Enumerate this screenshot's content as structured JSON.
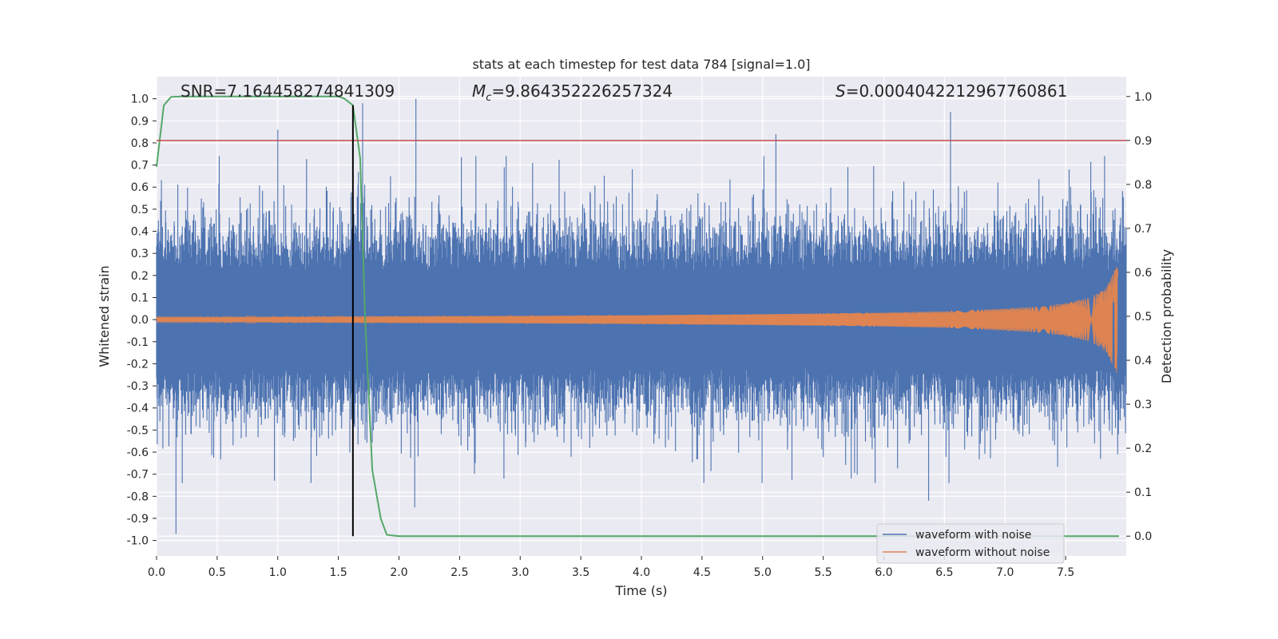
{
  "chart_data": {
    "type": "line",
    "title": "stats at each timestep for test data 784 [signal=1.0]",
    "xlabel": "Time (s)",
    "ylabel_left": "Whitened strain",
    "ylabel_right": "Detection probability",
    "xlim": [
      0.0,
      8.0
    ],
    "ylim_left": [
      -1.07,
      1.1
    ],
    "ylim_right": [
      -0.045,
      1.045
    ],
    "x_ticks": [
      "0.0",
      "0.5",
      "1.0",
      "1.5",
      "2.0",
      "2.5",
      "3.0",
      "3.5",
      "4.0",
      "4.5",
      "5.0",
      "5.5",
      "6.0",
      "6.5",
      "7.0",
      "7.5"
    ],
    "y_ticks_left": [
      "1.0",
      "0.9",
      "0.8",
      "0.7",
      "0.6",
      "0.5",
      "0.4",
      "0.3",
      "0.2",
      "0.1",
      "0.0",
      "-0.1",
      "-0.2",
      "-0.3",
      "-0.4",
      "-0.5",
      "-0.6",
      "-0.7",
      "-0.8",
      "-0.9",
      "-1.0"
    ],
    "y_ticks_right": [
      "1.0",
      "0.9",
      "0.8",
      "0.7",
      "0.6",
      "0.5",
      "0.4",
      "0.3",
      "0.2",
      "0.1",
      "0.0"
    ],
    "grid": true,
    "legend_position": "bottom-right",
    "annotations": {
      "snr": "SNR=7.164458274841309",
      "mc_symbol": "M",
      "mc_sub": "c",
      "mc_value": "=9.864352226257324",
      "s_symbol": "S",
      "s_value": "=0.0004042212967760861"
    },
    "series": [
      {
        "name": "waveform with noise",
        "color": "#4c72b0",
        "axis": "left",
        "style": "dense noise, roughly within ±0.45 with spikes",
        "peaks": [
          {
            "x": 0.16,
            "y": -0.97
          },
          {
            "x": 1.0,
            "y": 0.86
          },
          {
            "x": 1.7,
            "y": 0.98
          },
          {
            "x": 2.14,
            "y": 1.0
          },
          {
            "x": 2.13,
            "y": -0.85
          },
          {
            "x": 5.11,
            "y": 0.84
          },
          {
            "x": 6.55,
            "y": 0.94
          },
          {
            "x": 6.37,
            "y": -0.82
          }
        ]
      },
      {
        "name": "waveform without noise",
        "color": "#dd8452",
        "axis": "left",
        "style": "chirp growing toward merger",
        "x": [
          0.0,
          1.0,
          2.0,
          3.0,
          4.0,
          5.0,
          6.0,
          6.5,
          7.0,
          7.3,
          7.5,
          7.7,
          7.8,
          7.85,
          7.9,
          7.93
        ],
        "envelope": [
          0.012,
          0.013,
          0.015,
          0.017,
          0.02,
          0.025,
          0.032,
          0.038,
          0.05,
          0.06,
          0.075,
          0.1,
          0.13,
          0.16,
          0.22,
          0.25
        ]
      },
      {
        "name": "detection probability",
        "color": "#55a868",
        "axis": "right",
        "x": [
          0.0,
          0.06,
          0.12,
          0.2,
          0.5,
          1.0,
          1.5,
          1.55,
          1.62,
          1.68,
          1.72,
          1.78,
          1.85,
          1.9,
          2.0,
          3.0,
          4.0,
          5.0,
          6.0,
          7.0,
          7.94
        ],
        "values": [
          0.84,
          0.98,
          0.999,
          1.0,
          1.0,
          1.0,
          1.0,
          0.995,
          0.98,
          0.86,
          0.5,
          0.15,
          0.04,
          0.003,
          0.0,
          0.0,
          0.0,
          0.0,
          0.0,
          0.0,
          0.0
        ]
      }
    ],
    "threshold": {
      "axis": "right",
      "value": 0.9,
      "color": "#c44e52"
    },
    "marker_line": {
      "x": 1.62,
      "y_range_right": [
        0.0,
        0.98
      ],
      "color": "#000000"
    }
  }
}
